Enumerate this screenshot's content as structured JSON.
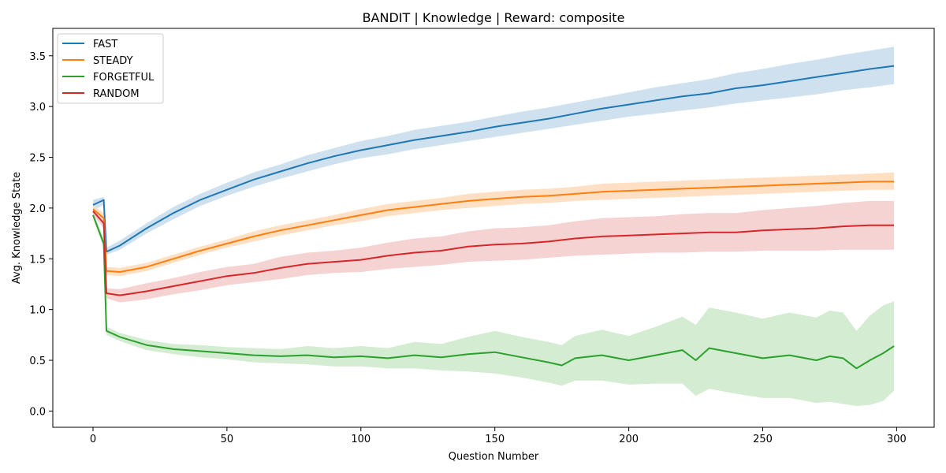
{
  "chart_data": {
    "type": "line",
    "title": "BANDIT | Knowledge | Reward: composite",
    "xlabel": "Question Number",
    "ylabel": "Avg. Knowledge State",
    "xlim": [
      -15,
      314
    ],
    "ylim": [
      -0.16,
      3.77
    ],
    "xticks": [
      0,
      50,
      100,
      150,
      200,
      250,
      300
    ],
    "xtick_labels": [
      "0",
      "50",
      "100",
      "150",
      "200",
      "250",
      "300"
    ],
    "yticks": [
      0.0,
      0.5,
      1.0,
      1.5,
      2.0,
      2.5,
      3.0,
      3.5
    ],
    "ytick_labels": [
      "0.0",
      "0.5",
      "1.0",
      "1.5",
      "2.0",
      "2.5",
      "3.0",
      "3.5"
    ],
    "grid": false,
    "legend_position": "top-left",
    "series": [
      {
        "name": "FAST",
        "color": "#1f77b4",
        "band_color": "#cfe1ef",
        "x": [
          0,
          4,
          5,
          10,
          20,
          30,
          40,
          50,
          60,
          70,
          80,
          90,
          100,
          110,
          120,
          130,
          140,
          150,
          160,
          170,
          180,
          190,
          200,
          210,
          220,
          230,
          240,
          250,
          260,
          270,
          280,
          290,
          299
        ],
        "mean": [
          2.03,
          2.08,
          1.57,
          1.63,
          1.8,
          1.95,
          2.08,
          2.18,
          2.28,
          2.36,
          2.44,
          2.51,
          2.57,
          2.62,
          2.67,
          2.71,
          2.75,
          2.8,
          2.84,
          2.88,
          2.93,
          2.98,
          3.02,
          3.06,
          3.1,
          3.13,
          3.18,
          3.21,
          3.25,
          3.29,
          3.33,
          3.37,
          3.4
        ],
        "lower": [
          1.98,
          2.03,
          1.54,
          1.59,
          1.75,
          1.89,
          2.02,
          2.12,
          2.21,
          2.29,
          2.36,
          2.43,
          2.49,
          2.53,
          2.58,
          2.62,
          2.66,
          2.7,
          2.74,
          2.78,
          2.82,
          2.86,
          2.9,
          2.93,
          2.96,
          2.99,
          3.03,
          3.06,
          3.09,
          3.12,
          3.16,
          3.19,
          3.22
        ],
        "upper": [
          2.08,
          2.11,
          1.61,
          1.68,
          1.85,
          2.01,
          2.14,
          2.25,
          2.35,
          2.43,
          2.52,
          2.59,
          2.66,
          2.71,
          2.77,
          2.81,
          2.85,
          2.9,
          2.95,
          2.99,
          3.04,
          3.09,
          3.14,
          3.19,
          3.23,
          3.27,
          3.33,
          3.37,
          3.42,
          3.46,
          3.51,
          3.55,
          3.59
        ]
      },
      {
        "name": "STEADY",
        "color": "#ff7f0e",
        "band_color": "#ffe0c4",
        "x": [
          0,
          4,
          5,
          10,
          20,
          30,
          40,
          50,
          60,
          70,
          80,
          90,
          100,
          110,
          120,
          130,
          140,
          150,
          160,
          170,
          180,
          190,
          200,
          210,
          220,
          230,
          240,
          250,
          260,
          270,
          280,
          290,
          299
        ],
        "mean": [
          1.99,
          1.9,
          1.38,
          1.37,
          1.42,
          1.5,
          1.58,
          1.65,
          1.72,
          1.78,
          1.83,
          1.88,
          1.93,
          1.98,
          2.01,
          2.04,
          2.07,
          2.09,
          2.11,
          2.12,
          2.14,
          2.16,
          2.17,
          2.18,
          2.19,
          2.2,
          2.21,
          2.22,
          2.23,
          2.24,
          2.25,
          2.26,
          2.26
        ],
        "lower": [
          1.95,
          1.85,
          1.34,
          1.33,
          1.38,
          1.46,
          1.54,
          1.61,
          1.67,
          1.73,
          1.78,
          1.83,
          1.87,
          1.92,
          1.95,
          1.98,
          2.0,
          2.02,
          2.04,
          2.05,
          2.07,
          2.08,
          2.09,
          2.1,
          2.11,
          2.12,
          2.13,
          2.14,
          2.15,
          2.16,
          2.17,
          2.18,
          2.18
        ],
        "upper": [
          2.03,
          1.95,
          1.42,
          1.41,
          1.46,
          1.54,
          1.62,
          1.69,
          1.77,
          1.83,
          1.88,
          1.93,
          1.99,
          2.04,
          2.07,
          2.1,
          2.14,
          2.16,
          2.18,
          2.19,
          2.21,
          2.24,
          2.25,
          2.26,
          2.27,
          2.28,
          2.29,
          2.3,
          2.31,
          2.32,
          2.33,
          2.34,
          2.35
        ]
      },
      {
        "name": "FORGETFUL",
        "color": "#2ca02c",
        "band_color": "#d3ecd2",
        "x": [
          0,
          4,
          5,
          10,
          20,
          30,
          40,
          50,
          60,
          70,
          80,
          90,
          100,
          110,
          120,
          130,
          140,
          150,
          160,
          170,
          175,
          180,
          190,
          200,
          210,
          220,
          225,
          230,
          240,
          250,
          260,
          270,
          275,
          280,
          285,
          290,
          295,
          299
        ],
        "mean": [
          1.93,
          1.65,
          0.79,
          0.73,
          0.65,
          0.61,
          0.59,
          0.57,
          0.55,
          0.54,
          0.55,
          0.53,
          0.54,
          0.52,
          0.55,
          0.53,
          0.56,
          0.58,
          0.53,
          0.48,
          0.45,
          0.52,
          0.55,
          0.5,
          0.55,
          0.6,
          0.5,
          0.62,
          0.57,
          0.52,
          0.55,
          0.5,
          0.54,
          0.52,
          0.42,
          0.5,
          0.57,
          0.64
        ],
        "lower": [
          1.9,
          1.6,
          0.75,
          0.69,
          0.6,
          0.56,
          0.53,
          0.51,
          0.48,
          0.47,
          0.46,
          0.44,
          0.44,
          0.42,
          0.42,
          0.4,
          0.39,
          0.37,
          0.33,
          0.28,
          0.25,
          0.3,
          0.3,
          0.26,
          0.27,
          0.27,
          0.15,
          0.22,
          0.17,
          0.13,
          0.13,
          0.08,
          0.09,
          0.07,
          0.05,
          0.06,
          0.1,
          0.2
        ],
        "upper": [
          1.96,
          1.7,
          0.83,
          0.77,
          0.7,
          0.66,
          0.65,
          0.63,
          0.62,
          0.61,
          0.64,
          0.62,
          0.64,
          0.62,
          0.68,
          0.66,
          0.73,
          0.79,
          0.73,
          0.68,
          0.65,
          0.74,
          0.8,
          0.74,
          0.83,
          0.93,
          0.85,
          1.02,
          0.97,
          0.91,
          0.97,
          0.92,
          0.99,
          0.97,
          0.79,
          0.94,
          1.04,
          1.08
        ]
      },
      {
        "name": "RANDOM",
        "color": "#d62728",
        "band_color": "#f6d3d3",
        "x": [
          0,
          4,
          5,
          10,
          20,
          30,
          40,
          50,
          60,
          70,
          80,
          90,
          100,
          110,
          120,
          130,
          140,
          150,
          160,
          170,
          180,
          190,
          200,
          210,
          220,
          230,
          240,
          250,
          260,
          270,
          280,
          290,
          299
        ],
        "mean": [
          1.97,
          1.85,
          1.16,
          1.14,
          1.18,
          1.23,
          1.28,
          1.33,
          1.36,
          1.41,
          1.45,
          1.47,
          1.49,
          1.53,
          1.56,
          1.58,
          1.62,
          1.64,
          1.65,
          1.67,
          1.7,
          1.72,
          1.73,
          1.74,
          1.75,
          1.76,
          1.76,
          1.78,
          1.79,
          1.8,
          1.82,
          1.83,
          1.83
        ],
        "lower": [
          1.93,
          1.8,
          1.11,
          1.07,
          1.1,
          1.15,
          1.19,
          1.24,
          1.27,
          1.3,
          1.34,
          1.36,
          1.37,
          1.4,
          1.42,
          1.44,
          1.47,
          1.48,
          1.49,
          1.51,
          1.53,
          1.54,
          1.55,
          1.56,
          1.56,
          1.57,
          1.57,
          1.58,
          1.58,
          1.58,
          1.59,
          1.59,
          1.59
        ],
        "upper": [
          2.01,
          1.9,
          1.21,
          1.2,
          1.26,
          1.31,
          1.37,
          1.42,
          1.45,
          1.52,
          1.56,
          1.58,
          1.61,
          1.66,
          1.7,
          1.72,
          1.77,
          1.8,
          1.81,
          1.83,
          1.87,
          1.9,
          1.91,
          1.92,
          1.94,
          1.95,
          1.95,
          1.98,
          2.0,
          2.02,
          2.05,
          2.07,
          2.07
        ]
      }
    ]
  }
}
